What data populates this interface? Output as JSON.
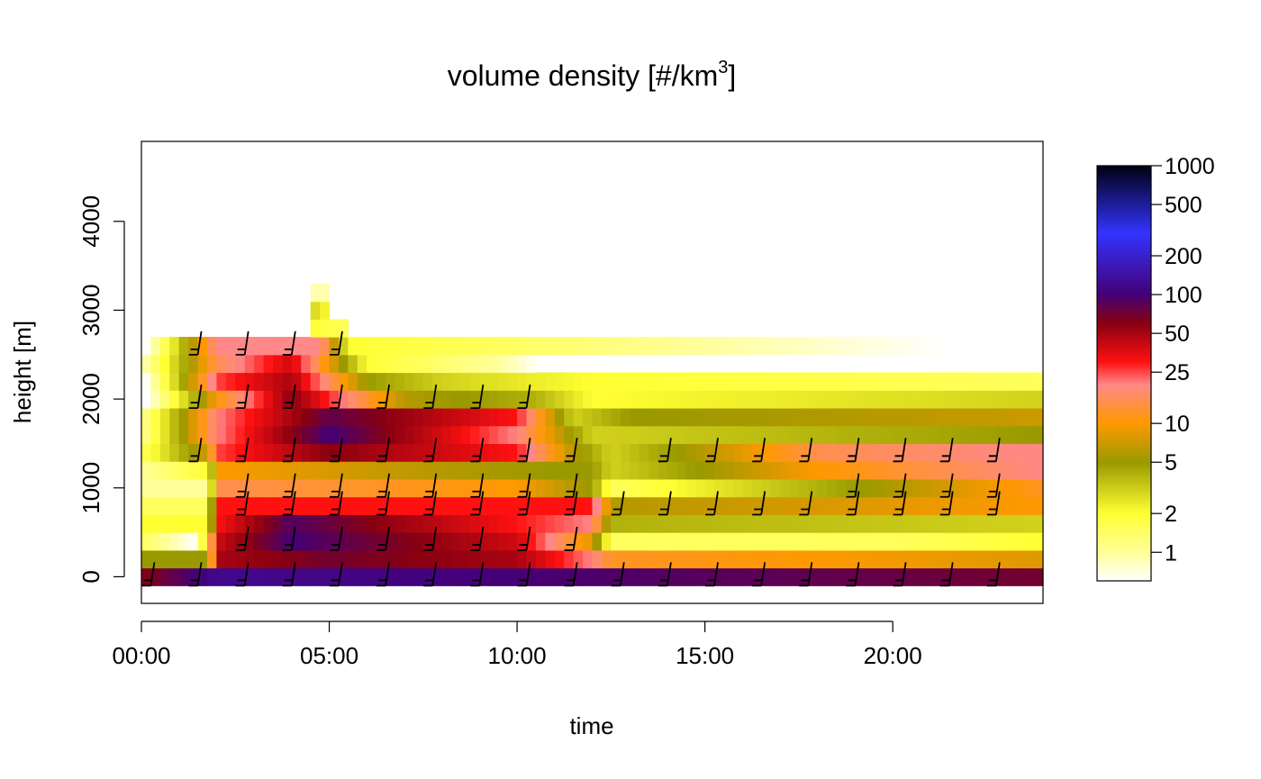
{
  "chart_data": {
    "type": "heatmap",
    "title": "volume density [#/km",
    "title_superscript": "3",
    "title_suffix": "]",
    "xlabel": "time",
    "ylabel": "height [m]",
    "x_ticks": [
      "00:00",
      "05:00",
      "10:00",
      "15:00",
      "20:00"
    ],
    "x_tick_hours": [
      0,
      5,
      10,
      15,
      20
    ],
    "y_ticks": [
      "0",
      "1000",
      "2000",
      "3000",
      "4000"
    ],
    "y_tick_values": [
      0,
      1000,
      2000,
      3000,
      4000
    ],
    "xlim_hours": [
      0,
      24
    ],
    "ylim": [
      -300,
      4900
    ],
    "height_bin_m": 200,
    "time_bin_hours": 0.25,
    "colorbar": {
      "scale": "log",
      "range": [
        0.6,
        1000
      ],
      "ticks": [
        "1000",
        "500",
        "200",
        "100",
        "50",
        "25",
        "10",
        "5",
        "2",
        "1"
      ],
      "tick_values": [
        1000,
        500,
        200,
        100,
        50,
        25,
        10,
        5,
        2,
        1
      ],
      "colors": [
        "#ffffff",
        "#ffff99",
        "#ffff33",
        "#999900",
        "#ff9900",
        "#ff8888",
        "#ff1111",
        "#880011",
        "#440077",
        "#3333ff",
        "#000011"
      ],
      "color_stops": [
        0.6,
        1,
        2,
        5,
        10,
        20,
        30,
        60,
        100,
        300,
        1000
      ]
    },
    "profiles": [
      {
        "height": 0,
        "times": [
          0,
          2,
          24
        ],
        "values": [
          60,
          120,
          70
        ]
      },
      {
        "height": 200,
        "times": [
          0,
          1.8,
          2,
          5,
          10,
          12,
          12.5,
          24
        ],
        "values": [
          5,
          5,
          50,
          70,
          50,
          20,
          12,
          8
        ]
      },
      {
        "height": 400,
        "times": [
          0,
          1.5,
          2,
          4,
          10,
          12,
          12.5,
          20,
          24
        ],
        "values": [
          1.5,
          0.6,
          40,
          100,
          40,
          8,
          1.5,
          1.5,
          2
        ]
      },
      {
        "height": 600,
        "times": [
          0,
          1.8,
          2,
          4,
          10,
          12,
          12.5,
          24
        ],
        "values": [
          2,
          2,
          30,
          90,
          30,
          20,
          4,
          3
        ]
      },
      {
        "height": 800,
        "times": [
          0,
          1.8,
          2,
          10,
          12,
          12.5,
          24
        ],
        "values": [
          1.5,
          1.5,
          30,
          30,
          30,
          6,
          10
        ]
      },
      {
        "height": 1000,
        "times": [
          0,
          1.8,
          2,
          10,
          12,
          12.5,
          24
        ],
        "values": [
          1,
          1,
          15,
          10,
          5,
          1.5,
          12
        ]
      },
      {
        "height": 1200,
        "times": [
          0,
          1.8,
          2,
          6,
          11,
          12,
          12.5,
          18,
          24
        ],
        "values": [
          1,
          2,
          10,
          7,
          5,
          5,
          3,
          10,
          20
        ]
      },
      {
        "height": 1400,
        "times": [
          0,
          1.8,
          2,
          5,
          10,
          11.5,
          12.5,
          18,
          24
        ],
        "values": [
          1.5,
          8,
          25,
          60,
          30,
          6,
          3,
          15,
          20
        ]
      },
      {
        "height": 1600,
        "times": [
          0,
          2,
          4,
          5,
          10,
          12,
          24
        ],
        "values": [
          1,
          20,
          60,
          100,
          20,
          3,
          5
        ]
      },
      {
        "height": 1800,
        "times": [
          0,
          2,
          5,
          10,
          11.5,
          13,
          24
        ],
        "values": [
          1,
          20,
          80,
          30,
          3,
          5,
          7
        ]
      },
      {
        "height": 2000,
        "times": [
          0,
          2,
          4,
          7,
          10.5,
          12,
          24
        ],
        "values": [
          0.5,
          10,
          60,
          6,
          4,
          2,
          3
        ]
      },
      {
        "height": 2200,
        "times": [
          0,
          2,
          4,
          6,
          8,
          12,
          24
        ],
        "values": [
          0.5,
          25,
          50,
          5,
          3,
          2,
          1.5
        ]
      },
      {
        "height": 2400,
        "times": [
          0,
          2,
          4,
          6,
          9.5,
          11,
          24
        ],
        "values": [
          0.8,
          15,
          40,
          2,
          1,
          0.5,
          0.5
        ]
      },
      {
        "height": 2600,
        "times": [
          0,
          2,
          4.8,
          5.5,
          24
        ],
        "values": [
          0.5,
          20,
          20,
          2,
          0.5
        ]
      },
      {
        "height": 2800,
        "times": [
          4.5,
          5.5
        ],
        "values": [
          2,
          1.5
        ]
      },
      {
        "height": 3000,
        "times": [
          4.5,
          5
        ],
        "values": [
          3,
          2
        ]
      },
      {
        "height": 3200,
        "times": [
          4.5,
          5
        ],
        "values": [
          0.9,
          0.9
        ]
      }
    ]
  }
}
